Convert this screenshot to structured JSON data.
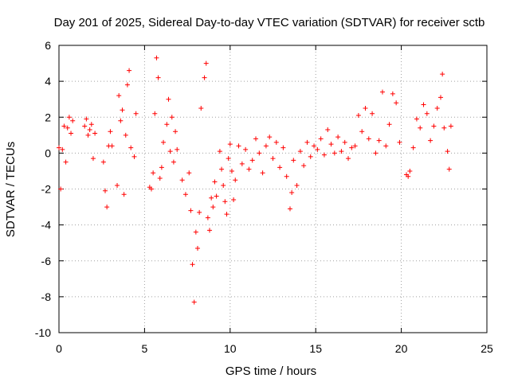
{
  "chart_data": {
    "type": "scatter",
    "title": "Day 201 of 2025, Sidereal Day-to-day VTEC variation (SDTVAR) for receiver sctb",
    "xlabel": "GPS time / hours",
    "ylabel": "SDTVAR / TECUs",
    "xlim": [
      0,
      25
    ],
    "ylim": [
      -10,
      6
    ],
    "xticks": [
      0,
      5,
      10,
      15,
      20,
      25
    ],
    "xtick_labels": [
      "0",
      "5",
      "10",
      "15",
      "20",
      "25"
    ],
    "yticks": [
      -10,
      -8,
      -6,
      -4,
      -2,
      0,
      2,
      4,
      6
    ],
    "ytick_labels": [
      "-10",
      "-8",
      "-6",
      "-4",
      "-2",
      "0",
      "2",
      "4",
      "6"
    ],
    "grid": true,
    "marker": "+",
    "color": "#ff0000",
    "series": [
      {
        "name": "sctb",
        "x": [
          0.0,
          0.1,
          0.2,
          0.3,
          0.4,
          0.5,
          0.6,
          0.7,
          0.8,
          1.5,
          1.6,
          1.7,
          1.8,
          1.9,
          2.0,
          2.1,
          2.6,
          2.7,
          2.8,
          2.9,
          3.0,
          3.1,
          3.4,
          3.5,
          3.6,
          3.7,
          3.8,
          3.9,
          4.0,
          4.1,
          4.2,
          4.4,
          4.5,
          5.3,
          5.4,
          5.5,
          5.6,
          5.7,
          5.8,
          5.9,
          6.0,
          6.1,
          6.3,
          6.4,
          6.5,
          6.6,
          6.7,
          6.8,
          6.9,
          7.2,
          7.4,
          7.6,
          7.7,
          7.8,
          7.9,
          8.0,
          8.1,
          8.2,
          8.3,
          8.5,
          8.6,
          8.7,
          8.8,
          8.9,
          9.0,
          9.1,
          9.2,
          9.4,
          9.5,
          9.6,
          9.7,
          9.8,
          9.9,
          10.0,
          10.1,
          10.2,
          10.3,
          10.5,
          10.7,
          10.9,
          11.1,
          11.3,
          11.5,
          11.7,
          11.9,
          12.1,
          12.3,
          12.5,
          12.7,
          12.9,
          13.1,
          13.3,
          13.5,
          13.6,
          13.7,
          13.9,
          14.1,
          14.3,
          14.5,
          14.7,
          14.9,
          15.1,
          15.3,
          15.5,
          15.7,
          15.9,
          16.1,
          16.3,
          16.5,
          16.7,
          16.9,
          17.1,
          17.3,
          17.5,
          17.7,
          17.9,
          18.1,
          18.3,
          18.5,
          18.7,
          18.9,
          19.1,
          19.3,
          19.5,
          19.7,
          19.9,
          20.3,
          20.4,
          20.5,
          20.7,
          20.9,
          21.1,
          21.3,
          21.5,
          21.7,
          21.9,
          22.1,
          22.3,
          22.4,
          22.5,
          22.7,
          22.8,
          22.9
        ],
        "y": [
          0.3,
          -2.0,
          0.2,
          1.5,
          -0.5,
          1.4,
          2.0,
          1.1,
          1.8,
          1.5,
          1.9,
          1.0,
          1.3,
          1.6,
          -0.3,
          1.1,
          -0.5,
          -2.1,
          -3.0,
          0.4,
          1.2,
          0.4,
          -1.8,
          3.2,
          1.8,
          2.4,
          -2.3,
          1.0,
          3.8,
          4.6,
          0.3,
          -0.2,
          2.2,
          -1.9,
          -2.0,
          -1.1,
          2.2,
          5.3,
          4.2,
          -1.4,
          -0.8,
          0.6,
          1.6,
          3.0,
          0.1,
          2.0,
          -0.5,
          1.2,
          0.2,
          -1.5,
          -2.3,
          -1.1,
          -3.2,
          -6.2,
          -8.3,
          -4.4,
          -5.3,
          -3.3,
          2.5,
          4.2,
          5.0,
          -3.6,
          -4.3,
          -2.5,
          -3.0,
          -1.6,
          -2.4,
          0.1,
          -0.9,
          -1.8,
          -2.7,
          -3.4,
          -0.3,
          0.5,
          -1.0,
          -2.6,
          -1.5,
          0.4,
          -0.6,
          0.2,
          -0.9,
          -0.4,
          0.8,
          0.0,
          -1.1,
          0.4,
          0.9,
          -0.3,
          0.6,
          -0.8,
          0.3,
          -1.3,
          -3.1,
          -2.2,
          -0.4,
          -1.8,
          0.1,
          -0.7,
          0.6,
          -0.2,
          0.4,
          0.2,
          0.8,
          -0.1,
          1.3,
          0.5,
          0.0,
          0.9,
          0.1,
          0.6,
          -0.3,
          0.3,
          0.4,
          2.1,
          1.2,
          2.5,
          0.8,
          2.2,
          0.0,
          0.7,
          3.4,
          0.4,
          1.6,
          3.3,
          2.8,
          0.6,
          -1.2,
          -1.3,
          -1.0,
          0.3,
          1.9,
          1.4,
          2.7,
          2.2,
          0.7,
          1.5,
          2.5,
          3.1,
          4.4,
          1.4,
          0.1,
          -0.9,
          1.5
        ]
      }
    ]
  }
}
